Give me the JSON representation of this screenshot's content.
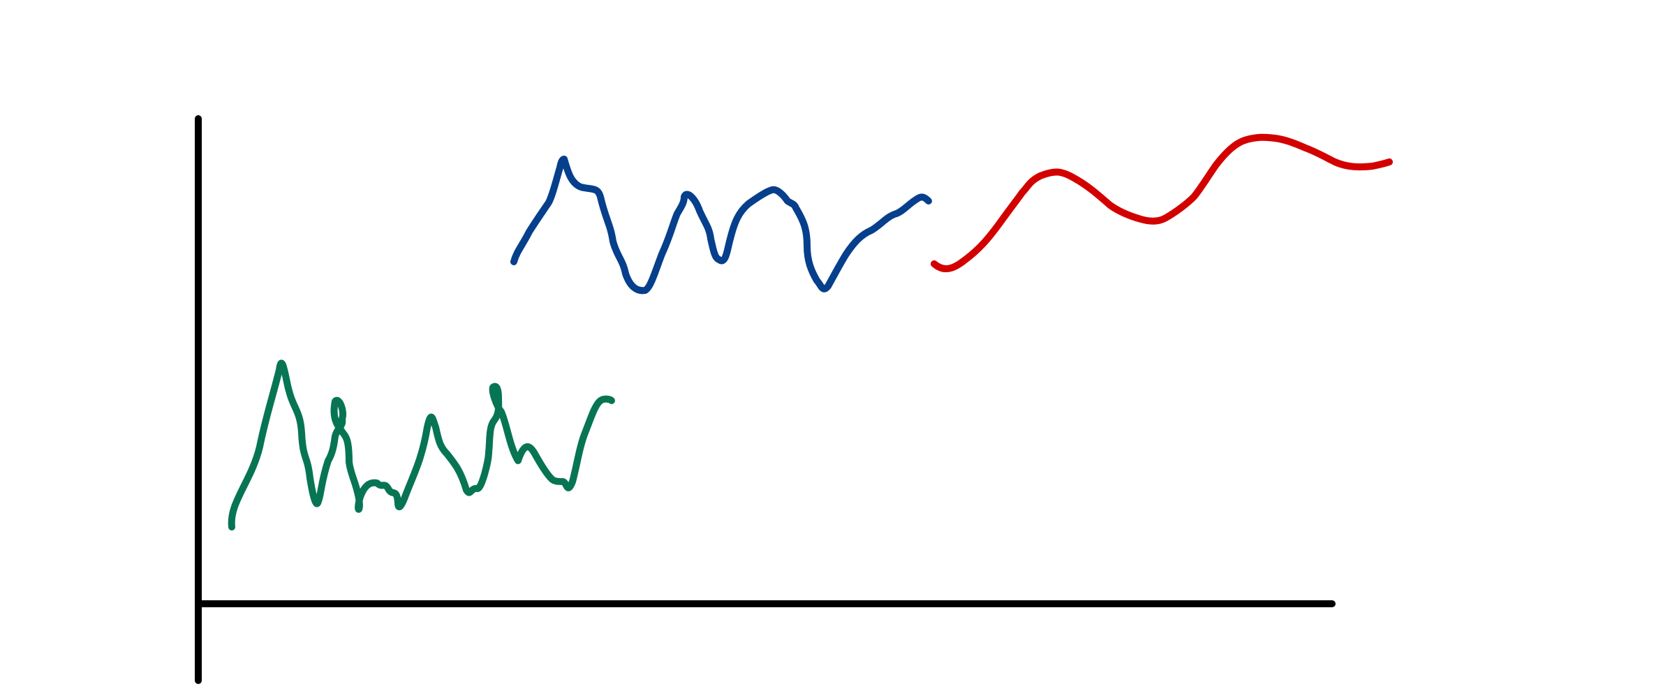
{
  "drawing": {
    "description_visible_text": "",
    "colors": {
      "axes": "#000000",
      "green_squiggle": "#077553",
      "blue_squiggle": "#063f8c",
      "red_curve": "#d30000"
    },
    "elements": [
      "axes",
      "green-squiggle",
      "blue-squiggle",
      "red-curve"
    ]
  }
}
